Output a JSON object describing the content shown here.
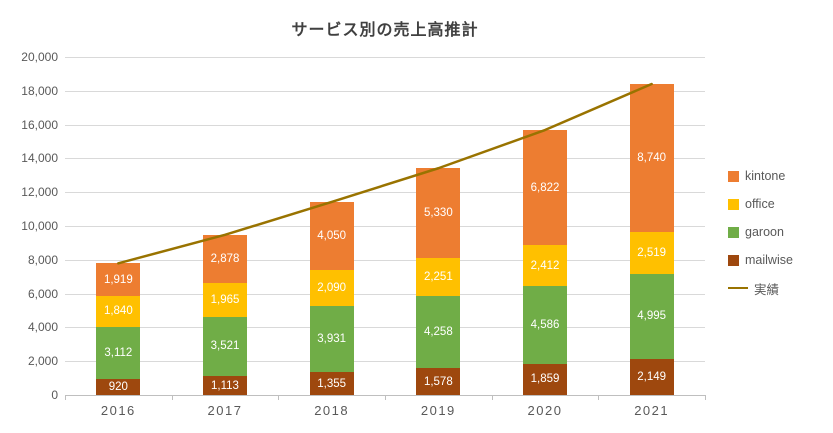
{
  "title": "サービス別の売上高推計",
  "colors": {
    "kintone": "#ED7D31",
    "office": "#FFC000",
    "garoon": "#70AD47",
    "mailwise": "#9E480E",
    "line": "#997300",
    "grid": "#D9D9D9",
    "axis": "#BFBFBF",
    "axis_text": "#595959",
    "title_text": "#404040"
  },
  "chart_data": {
    "type": "bar",
    "stacked": true,
    "title": "サービス別の売上高推計",
    "categories": [
      "2016",
      "2017",
      "2018",
      "2019",
      "2020",
      "2021"
    ],
    "series": [
      {
        "name": "mailwise",
        "color": "#9E480E",
        "values": [
          920,
          1113,
          1355,
          1578,
          1859,
          2149
        ]
      },
      {
        "name": "garoon",
        "color": "#70AD47",
        "values": [
          3112,
          3521,
          3931,
          4258,
          4586,
          4995
        ]
      },
      {
        "name": "office",
        "color": "#FFC000",
        "values": [
          1840,
          1965,
          2090,
          2251,
          2412,
          2519
        ]
      },
      {
        "name": "kintone",
        "color": "#ED7D31",
        "values": [
          1919,
          2878,
          4050,
          5330,
          6822,
          8740
        ]
      }
    ],
    "line_series": {
      "name": "実績",
      "color": "#997300",
      "values": [
        7791,
        9477,
        11426,
        13417,
        15679,
        18403
      ]
    },
    "xlabel": "",
    "ylabel": "",
    "ylim": [
      0,
      20000
    ],
    "ytick_step": 2000,
    "grid": true,
    "legend_position": "right"
  },
  "legend": {
    "items": [
      {
        "label": "kintone",
        "type": "box",
        "color": "#ED7D31"
      },
      {
        "label": "office",
        "type": "box",
        "color": "#FFC000"
      },
      {
        "label": "garoon",
        "type": "box",
        "color": "#70AD47"
      },
      {
        "label": "mailwise",
        "type": "box",
        "color": "#9E480E"
      },
      {
        "label": "実績",
        "type": "line",
        "color": "#997300"
      }
    ]
  }
}
